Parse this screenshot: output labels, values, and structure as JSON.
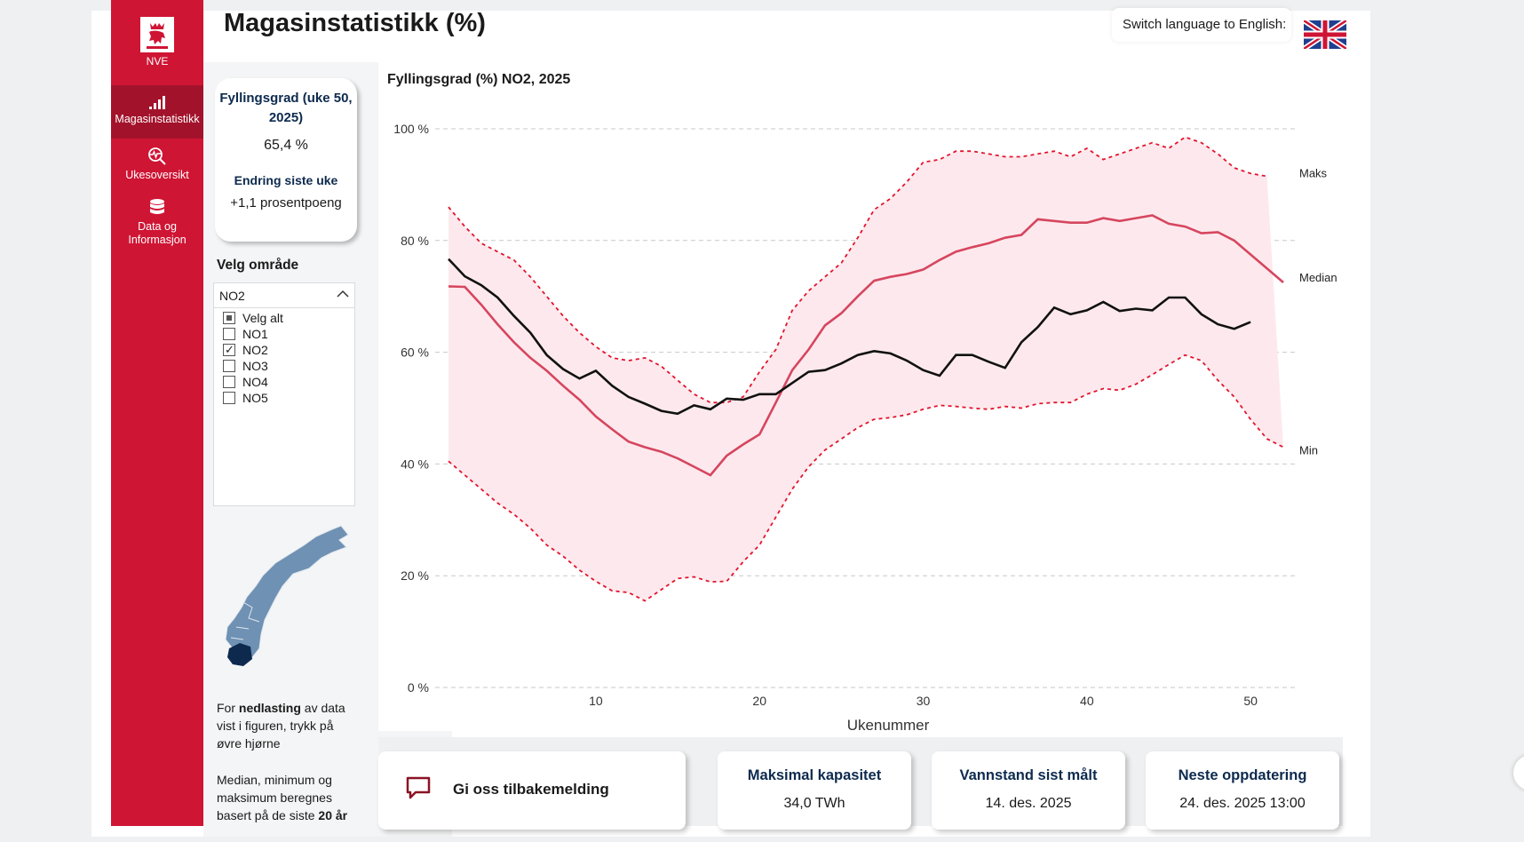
{
  "header": {
    "title": "Magasinstatistikk (%)",
    "lang_label": "Switch language to English:"
  },
  "sidebar": {
    "logo_text": "NVE",
    "items": [
      {
        "label": "Magasinstatistikk",
        "icon": "bar-chart-icon"
      },
      {
        "label": "Ukesoversikt",
        "icon": "search-pulse-icon"
      },
      {
        "label_line1": "Data og",
        "label_line2": "Informasjon",
        "icon": "database-icon"
      }
    ]
  },
  "fill_card": {
    "title": "Fyllingsgrad (uke 50, 2025)",
    "value": "65,4 %",
    "change_title": "Endring siste uke",
    "change_value": "+1,1 prosentpoeng"
  },
  "area_select": {
    "label": "Velg område",
    "selected": "NO2",
    "options": [
      {
        "label": "Velg alt",
        "state": "partial"
      },
      {
        "label": "NO1",
        "state": "unchecked"
      },
      {
        "label": "NO2",
        "state": "checked"
      },
      {
        "label": "NO3",
        "state": "unchecked"
      },
      {
        "label": "NO4",
        "state": "unchecked"
      },
      {
        "label": "NO5",
        "state": "unchecked"
      }
    ]
  },
  "notes": {
    "download_pre": "For ",
    "download_bold": "nedlasting",
    "download_post": " av data vist i figuren, trykk på øvre hjørne",
    "median_pre": "Median, minimum og maksimum beregnes basert på de siste ",
    "median_bold": "20 år"
  },
  "chart_data": {
    "type": "line",
    "title": "Fyllingsgrad (%) NO2, 2025",
    "xlabel": "Ukenummer",
    "ylabel": "",
    "xlim": [
      1,
      52
    ],
    "ylim": [
      0,
      100
    ],
    "yticks": [
      "0 %",
      "20 %",
      "40 %",
      "60 %",
      "80 %",
      "100 %"
    ],
    "xticks": [
      10,
      20,
      30,
      40,
      50
    ],
    "grid": true,
    "colors": {
      "band": "#fde9ed",
      "median": "#d6465f",
      "minmax": "#e3142e",
      "current": "#111111",
      "grid": "#c9c9c9"
    },
    "series": [
      {
        "name": "Maks",
        "style": "dashed",
        "values": [
          86.0,
          82.5,
          79.5,
          78.0,
          76.5,
          73.5,
          70.0,
          66.5,
          63.5,
          61.0,
          59.0,
          58.5,
          59.0,
          57.5,
          55.0,
          52.5,
          51.0,
          51.0,
          52.0,
          56.5,
          60.5,
          67.5,
          71.0,
          73.5,
          76.0,
          80.5,
          85.5,
          87.5,
          90.5,
          94.0,
          94.5,
          96.0,
          96.0,
          95.5,
          95.0,
          95.0,
          95.5,
          96.0,
          95.0,
          96.5,
          94.5,
          95.5,
          96.5,
          97.5,
          96.5,
          98.5,
          97.5,
          95.5,
          93.0,
          92.0,
          91.5
        ]
      },
      {
        "name": "Median",
        "style": "solid",
        "values": [
          71.8,
          71.7,
          68.5,
          65.0,
          61.8,
          59.0,
          56.7,
          54.0,
          51.5,
          48.5,
          46.2,
          44.0,
          43.0,
          42.2,
          41.0,
          39.5,
          38.0,
          41.5,
          43.5,
          45.3,
          51.0,
          56.8,
          60.5,
          64.8,
          67.0,
          70.0,
          72.8,
          73.5,
          74.0,
          74.8,
          76.5,
          78.0,
          78.8,
          79.5,
          80.5,
          81.0,
          83.8,
          83.5,
          83.2,
          83.2,
          84.0,
          83.5,
          84.0,
          84.5,
          83.0,
          82.5,
          81.3,
          81.5,
          80.0,
          77.5,
          75.0,
          72.5
        ]
      },
      {
        "name": "Min",
        "style": "dashed",
        "values": [
          40.5,
          38.0,
          35.5,
          33.0,
          31.0,
          28.5,
          25.5,
          23.5,
          21.0,
          19.0,
          17.3,
          17.0,
          15.5,
          17.5,
          19.5,
          19.8,
          18.9,
          19.0,
          22.5,
          25.5,
          30.5,
          35.5,
          39.5,
          42.5,
          44.5,
          46.5,
          48.0,
          48.3,
          48.8,
          49.8,
          50.5,
          50.3,
          50.0,
          49.8,
          50.3,
          50.0,
          50.8,
          51.0,
          51.0,
          52.5,
          53.5,
          53.2,
          54.3,
          56.0,
          57.8,
          59.5,
          58.5,
          55.0,
          52.0,
          48.0,
          44.5,
          43.0
        ]
      },
      {
        "name": "2025",
        "style": "solid",
        "values": [
          76.7,
          73.6,
          72.0,
          69.8,
          66.5,
          63.5,
          59.5,
          57.0,
          55.3,
          56.7,
          54.0,
          52.0,
          50.8,
          49.5,
          49.0,
          50.5,
          49.8,
          51.7,
          51.5,
          52.5,
          52.5,
          54.5,
          56.5,
          56.8,
          58.0,
          59.5,
          60.2,
          59.8,
          58.5,
          56.8,
          55.8,
          59.5,
          59.5,
          58.3,
          57.2,
          61.8,
          64.5,
          68.0,
          66.8,
          67.5,
          69.0,
          67.4,
          67.8,
          67.5,
          69.8,
          69.8,
          66.8,
          65.0,
          64.2,
          65.4
        ]
      }
    ],
    "line_labels": [
      "Maks",
      "Median",
      "Min"
    ]
  },
  "bottom": {
    "feedback_label": "Gi oss tilbakemelding",
    "cards": [
      {
        "title": "Maksimal kapasitet",
        "value": "34,0 TWh"
      },
      {
        "title": "Vannstand sist målt",
        "value": "14. des. 2025"
      },
      {
        "title": "Neste oppdatering",
        "value": "24. des. 2025 13:00"
      }
    ]
  }
}
